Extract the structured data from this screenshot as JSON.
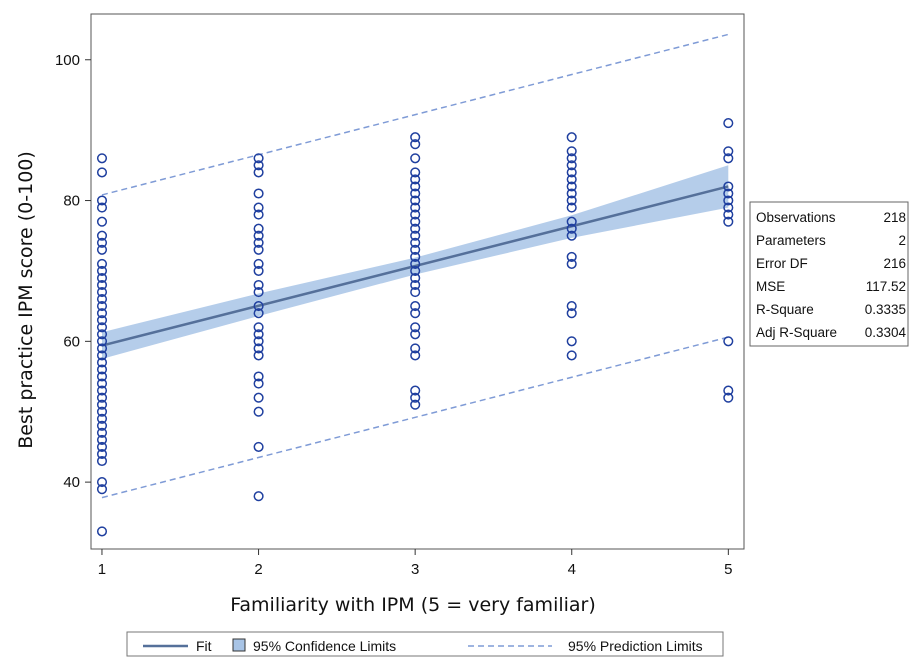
{
  "chart_data": {
    "type": "scatter",
    "xlabel": "Familiarity with IPM (5 = very familiar)",
    "ylabel": "Best practice IPM score (0-100)",
    "xlim": [
      0.93,
      5.1
    ],
    "ylim": [
      30.5,
      106.5
    ],
    "x_ticks": [
      1,
      2,
      3,
      4,
      5
    ],
    "x_tick_labels": [
      "1",
      "2",
      "3",
      "4",
      "5"
    ],
    "y_ticks": [
      40,
      60,
      80,
      100
    ],
    "y_tick_labels": [
      "40",
      "60",
      "80",
      "100"
    ],
    "grid": false,
    "colors": {
      "points": "#1f3f9f",
      "fit": "#55709a",
      "confidence_band": "#a8c4e6",
      "prediction": "#7f9bd6",
      "frame": "#555555"
    },
    "points": [
      {
        "x": 1,
        "y": [
          86,
          84,
          80,
          79,
          77,
          75,
          74,
          73,
          71,
          70,
          69,
          68,
          67,
          66,
          65,
          64,
          63,
          62,
          61,
          60,
          59,
          58,
          57,
          56,
          55,
          54,
          53,
          52,
          51,
          50,
          49,
          48,
          47,
          46,
          45,
          44,
          43,
          40,
          39,
          33
        ]
      },
      {
        "x": 2,
        "y": [
          86,
          85,
          84,
          81,
          79,
          78,
          76,
          75,
          74,
          73,
          71,
          70,
          68,
          67,
          65,
          64,
          62,
          61,
          60,
          59,
          58,
          55,
          54,
          52,
          50,
          45,
          38
        ]
      },
      {
        "x": 3,
        "y": [
          89,
          88,
          86,
          84,
          83,
          82,
          81,
          80,
          79,
          78,
          77,
          76,
          75,
          74,
          73,
          72,
          71,
          70,
          69,
          68,
          67,
          65,
          64,
          62,
          61,
          59,
          58,
          53,
          52,
          51
        ]
      },
      {
        "x": 4,
        "y": [
          89,
          87,
          86,
          85,
          84,
          83,
          82,
          81,
          80,
          79,
          77,
          76,
          75,
          72,
          71,
          65,
          64,
          60,
          58
        ]
      },
      {
        "x": 5,
        "y": [
          91,
          87,
          86,
          82,
          81,
          80,
          79,
          78,
          77,
          60,
          53,
          52
        ]
      }
    ],
    "fit": {
      "x": [
        1,
        5
      ],
      "y": [
        59.4,
        82.0
      ]
    },
    "confidence_limits": {
      "x": [
        1,
        2,
        3,
        4,
        5
      ],
      "lower": [
        57.5,
        63.6,
        69.5,
        74.7,
        79.0
      ],
      "upper": [
        61.3,
        66.8,
        71.9,
        77.9,
        85.0
      ]
    },
    "prediction_limits": {
      "x": [
        1,
        5
      ],
      "lower": [
        37.8,
        60.6
      ],
      "upper": [
        80.8,
        103.6
      ]
    },
    "stats_table": [
      {
        "label": "Observations",
        "value": "218"
      },
      {
        "label": "Parameters",
        "value": "2"
      },
      {
        "label": "Error DF",
        "value": "216"
      },
      {
        "label": "MSE",
        "value": "117.52"
      },
      {
        "label": "R-Square",
        "value": "0.3335"
      },
      {
        "label": "Adj R-Square",
        "value": "0.3304"
      }
    ],
    "legend": {
      "placement": "bottom",
      "entries": [
        {
          "name": "Fit",
          "kind": "line"
        },
        {
          "name": "95% Confidence Limits",
          "kind": "band"
        },
        {
          "name": "95% Prediction Limits",
          "kind": "dashed"
        }
      ]
    }
  }
}
